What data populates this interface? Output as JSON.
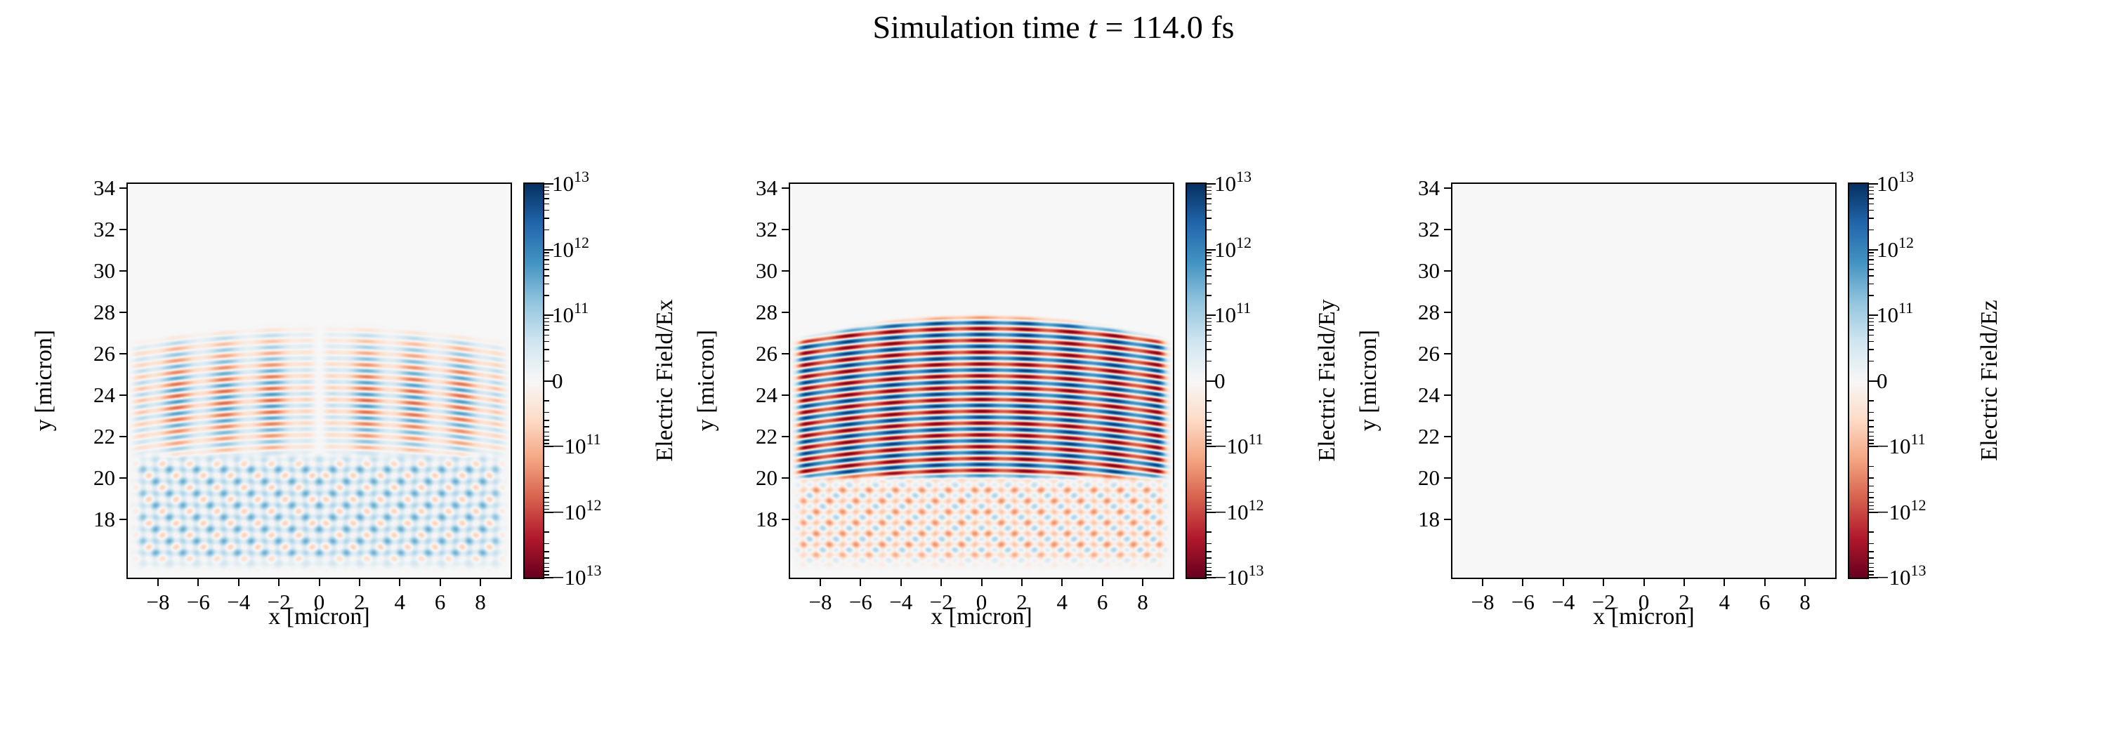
{
  "figure": {
    "title": {
      "prefix": "Simulation time ",
      "variable": "t",
      "suffix": " = 114.0 fs"
    },
    "background_color": "#ffffff"
  },
  "chart_data": {
    "type": "heatmap",
    "layout": "1 row x 3 columns, each panel with its own symlog colorbar",
    "title": "Simulation time t = 114.0 fs",
    "colormap": "RdBu",
    "colormap_stops": [
      [
        -1.0,
        "#67001f"
      ],
      [
        -0.8,
        "#b2182b"
      ],
      [
        -0.6,
        "#d6604d"
      ],
      [
        -0.4,
        "#f4a582"
      ],
      [
        -0.2,
        "#fddbc7"
      ],
      [
        0.0,
        "#f7f7f7"
      ],
      [
        0.2,
        "#d1e5f0"
      ],
      [
        0.4,
        "#92c5de"
      ],
      [
        0.6,
        "#4393c3"
      ],
      [
        0.8,
        "#2166ac"
      ],
      [
        1.0,
        "#053061"
      ]
    ],
    "norm": {
      "type": "symlog",
      "vmin": -10000000000000.0,
      "vmax": 10000000000000.0,
      "linthresh": 100000000000.0,
      "decades_per_side": 3
    },
    "xlim": [
      -9.5,
      9.5
    ],
    "ylim": [
      15.2,
      34.2
    ],
    "xticks": [
      -8,
      -6,
      -4,
      -2,
      0,
      2,
      4,
      6,
      8
    ],
    "xtick_labels": [
      "−8",
      "−6",
      "−4",
      "−2",
      "0",
      "2",
      "4",
      "6",
      "8"
    ],
    "yticks": [
      18,
      20,
      22,
      24,
      26,
      28,
      30,
      32,
      34
    ],
    "ytick_labels": [
      "18",
      "20",
      "22",
      "24",
      "26",
      "28",
      "30",
      "32",
      "34"
    ],
    "colorbar_tick_labels": [
      {
        "mantissa": "10",
        "exponent": "13"
      },
      {
        "mantissa": "10",
        "exponent": "12"
      },
      {
        "mantissa": "10",
        "exponent": "11"
      },
      {
        "mantissa": "0",
        "exponent": ""
      },
      {
        "mantissa": "−10",
        "exponent": "11"
      },
      {
        "mantissa": "−10",
        "exponent": "12"
      },
      {
        "mantissa": "−10",
        "exponent": "13"
      }
    ],
    "panels": [
      {
        "id": "Ex",
        "xlabel": "x [micron]",
        "ylabel": "y [micron]",
        "colorbar_label": "Electric Field/Ex",
        "field_description": "Weak alternating orange/blue horizontal wave fronts between y≈21 and y≈27.5 with a narrow null seam at x=0, above a V-shaped mostly light-blue interference lattice converging toward the bottom center (y≈15.5–21).",
        "pattern": {
          "kind": "ex",
          "lambda": 0.57,
          "y_top": 27.6,
          "y_top_curve": 0.01,
          "phase_curve": 0.008,
          "stripe_amp": 0.58,
          "stripe_center": 23.8,
          "stripe_sigma": 3.4,
          "x_null_width": 0.35,
          "x_mod_period": 2.35,
          "x_mod_depth": 0.35,
          "lattice_top": 21.0,
          "lattice_bottom": 15.4,
          "lattice_amp": 0.27,
          "lattice_bias": 0.13,
          "lattice_period": 1.15,
          "lattice_slope": 0.85,
          "edge_fade": 1.0
        }
      },
      {
        "id": "Ey",
        "xlabel": "x [micron]",
        "ylabel": "y [micron]",
        "colorbar_label": "Electric Field/Ey",
        "field_description": "Strong alternating dark-red/dark-blue horizontal wave fronts forming a dome between y≈20 and y≈28 (top edge curved downward at the sides), above a fainter reddish criss-cross interference fan from y≈15.5 to y≈20.",
        "pattern": {
          "kind": "ey",
          "lambda": 0.57,
          "y_top": 28.0,
          "y_top_curve": 0.014,
          "phase_curve": 0.008,
          "amp": 0.97,
          "y_bottom": 19.8,
          "x_mod_period": 2.2,
          "x_mod_depth": 0.18,
          "lattice_top": 19.9,
          "lattice_bottom": 15.5,
          "lattice_amp": 0.3,
          "lattice_bias": -0.07,
          "lattice_period": 1.05,
          "lattice_slope": 0.8,
          "edge_fade": 0.8
        }
      },
      {
        "id": "Ez",
        "xlabel": "x [micron]",
        "ylabel": "y [micron]",
        "colorbar_label": "Electric Field/Ez",
        "field_description": "Uniform near-zero field; the panel is blank (flat near-white background).",
        "pattern": {
          "kind": "zero"
        }
      }
    ]
  }
}
